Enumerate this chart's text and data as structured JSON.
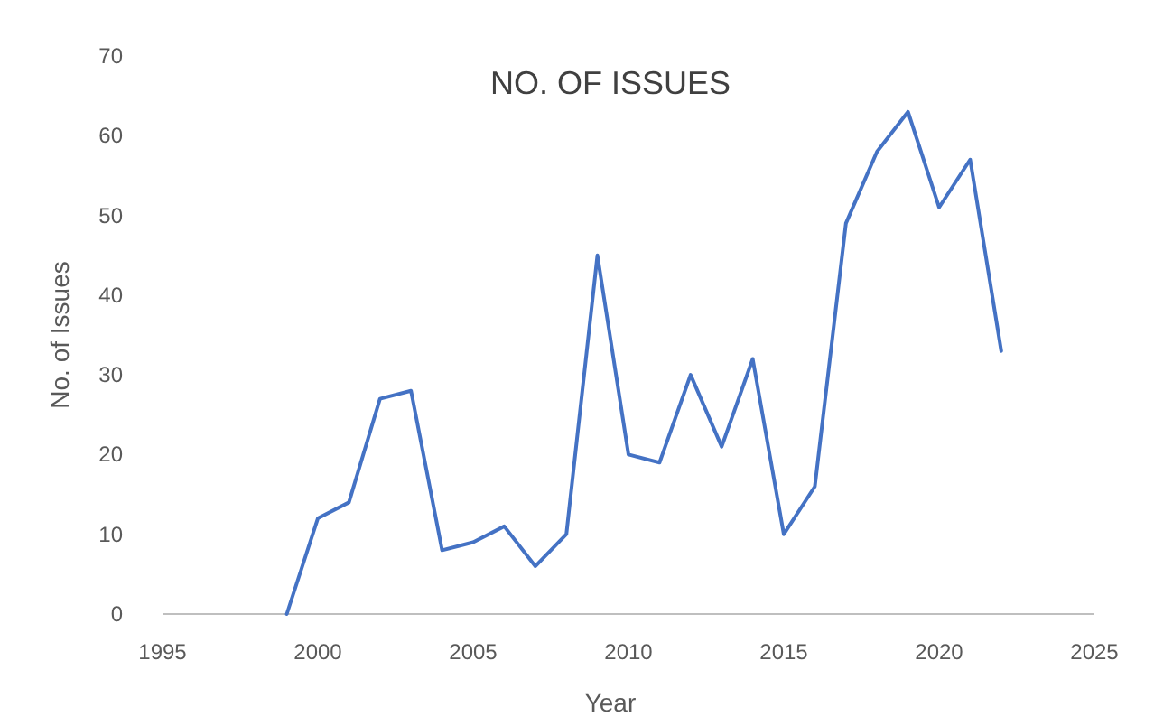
{
  "chart_data": {
    "type": "line",
    "title": "NO. OF ISSUES",
    "xlabel": "Year",
    "ylabel": "No. of Issues",
    "x": [
      1999,
      2000,
      2001,
      2002,
      2003,
      2004,
      2005,
      2006,
      2007,
      2008,
      2009,
      2010,
      2011,
      2012,
      2013,
      2014,
      2015,
      2016,
      2017,
      2018,
      2019,
      2020,
      2021,
      2022
    ],
    "series": [
      {
        "color": "#4472c4",
        "values": [
          0,
          12,
          14,
          27,
          28,
          8,
          9,
          11,
          6,
          10,
          45,
          20,
          19,
          30,
          21,
          32,
          10,
          16,
          49,
          58,
          63,
          51,
          57,
          33
        ]
      }
    ],
    "xlim": [
      1995,
      2025
    ],
    "xticks": [
      1995,
      2000,
      2005,
      2010,
      2015,
      2020,
      2025
    ],
    "ylim": [
      0,
      70
    ],
    "yticks": [
      0,
      10,
      20,
      30,
      40,
      50,
      60,
      70
    ],
    "grid": false,
    "marker": "none",
    "line_style": "solid"
  }
}
